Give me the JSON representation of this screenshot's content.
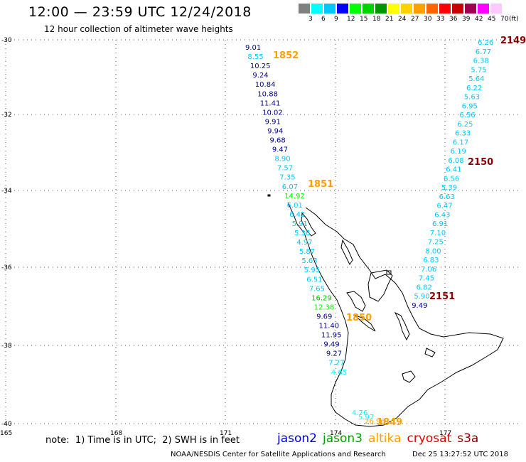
{
  "header": {
    "title": "12:00 — 23:59 UTC 12/24/2018",
    "subtitle": "12 hour collection of altimeter wave heights"
  },
  "colorbar": {
    "unit": "(ft)",
    "stops": [
      {
        "label": "3",
        "color": "#808080"
      },
      {
        "label": "6",
        "color": "#00ffff"
      },
      {
        "label": "9",
        "color": "#00c8ff"
      },
      {
        "label": "12",
        "color": "#0000ff"
      },
      {
        "label": "15",
        "color": "#00ff00"
      },
      {
        "label": "18",
        "color": "#00d200"
      },
      {
        "label": "21",
        "color": "#009600"
      },
      {
        "label": "24",
        "color": "#ffff00"
      },
      {
        "label": "27",
        "color": "#ffd200"
      },
      {
        "label": "30",
        "color": "#ffa000"
      },
      {
        "label": "33",
        "color": "#ff6400"
      },
      {
        "label": "36",
        "color": "#ff0000"
      },
      {
        "label": "39",
        "color": "#c80000"
      },
      {
        "label": "42",
        "color": "#a00050"
      },
      {
        "label": "45",
        "color": "#ff00ff"
      },
      {
        "label": "70",
        "color": "#ffc8ff"
      }
    ]
  },
  "axes": {
    "lat_labels": [
      "-30",
      "-32",
      "-34",
      "-36",
      "-38",
      "-40"
    ],
    "lon_labels": [
      "165",
      "168",
      "171",
      "174",
      "177"
    ]
  },
  "tracks": {
    "left": [
      {
        "v": "9.01",
        "c": "#00008b"
      },
      {
        "v": "8.55",
        "c": "#00c8ff"
      },
      {
        "v": "10.25",
        "c": "#00008b"
      },
      {
        "v": "9.24",
        "c": "#00008b"
      },
      {
        "v": "10.84",
        "c": "#00008b"
      },
      {
        "v": "10.88",
        "c": "#00008b"
      },
      {
        "v": "11.41",
        "c": "#00008b"
      },
      {
        "v": "10.02",
        "c": "#00008b"
      },
      {
        "v": "9.91",
        "c": "#00008b"
      },
      {
        "v": "9.94",
        "c": "#00008b"
      },
      {
        "v": "9.68",
        "c": "#00008b"
      },
      {
        "v": "9.47",
        "c": "#00008b"
      },
      {
        "v": "8.90",
        "c": "#00c8ff"
      },
      {
        "v": "7.57",
        "c": "#00c8ff"
      },
      {
        "v": "7.35",
        "c": "#00c8ff"
      },
      {
        "v": "6.07",
        "c": "#00c8ff"
      },
      {
        "v": "14.92",
        "c": "#00ff00"
      },
      {
        "v": "6.01",
        "c": "#00c8ff"
      },
      {
        "v": "6.42",
        "c": "#00c8ff"
      },
      {
        "v": "5.91",
        "c": "#00c8ff"
      },
      {
        "v": "5.38",
        "c": "#00c8ff"
      },
      {
        "v": "4.97",
        "c": "#00c8ff"
      },
      {
        "v": "5.87",
        "c": "#00c8ff"
      },
      {
        "v": "5.63",
        "c": "#00c8ff"
      },
      {
        "v": "5.95",
        "c": "#00c8ff"
      },
      {
        "v": "6.51",
        "c": "#00c8ff"
      },
      {
        "v": "7.65",
        "c": "#00c8ff"
      },
      {
        "v": "16.29",
        "c": "#00c000"
      },
      {
        "v": "12.38",
        "c": "#00ff00"
      },
      {
        "v": "9.69",
        "c": "#00008b"
      },
      {
        "v": "11.40",
        "c": "#00008b"
      },
      {
        "v": "11.95",
        "c": "#00008b"
      },
      {
        "v": "9.49",
        "c": "#00008b"
      },
      {
        "v": "9.27",
        "c": "#00008b"
      },
      {
        "v": "7.27",
        "c": "#00c8ff"
      },
      {
        "v": "4.65",
        "c": "#00ffff"
      }
    ],
    "right": [
      {
        "v": "6.26",
        "c": "#00c8ff"
      },
      {
        "v": "6.77",
        "c": "#00c8ff"
      },
      {
        "v": "6.38",
        "c": "#00c8ff"
      },
      {
        "v": "5.75",
        "c": "#00c8ff"
      },
      {
        "v": "5.64",
        "c": "#00c8ff"
      },
      {
        "v": "6.22",
        "c": "#00c8ff"
      },
      {
        "v": "5.63",
        "c": "#00c8ff"
      },
      {
        "v": "6.95",
        "c": "#00c8ff"
      },
      {
        "v": "6.56",
        "c": "#00c8ff"
      },
      {
        "v": "6.25",
        "c": "#00c8ff"
      },
      {
        "v": "6.33",
        "c": "#00c8ff"
      },
      {
        "v": "6.17",
        "c": "#00c8ff"
      },
      {
        "v": "6.19",
        "c": "#00c8ff"
      },
      {
        "v": "6.08",
        "c": "#00c8ff"
      },
      {
        "v": "6.41",
        "c": "#00c8ff"
      },
      {
        "v": "6.56",
        "c": "#00c8ff"
      },
      {
        "v": "5.39",
        "c": "#00c8ff"
      },
      {
        "v": "6.63",
        "c": "#00c8ff"
      },
      {
        "v": "6.47",
        "c": "#00c8ff"
      },
      {
        "v": "6.43",
        "c": "#00c8ff"
      },
      {
        "v": "6.91",
        "c": "#00c8ff"
      },
      {
        "v": "7.10",
        "c": "#00c8ff"
      },
      {
        "v": "7.25",
        "c": "#00c8ff"
      },
      {
        "v": "8.00",
        "c": "#00c8ff"
      },
      {
        "v": "6.83",
        "c": "#00c8ff"
      },
      {
        "v": "7.06",
        "c": "#00c8ff"
      },
      {
        "v": "7.45",
        "c": "#00c8ff"
      },
      {
        "v": "6.82",
        "c": "#00c8ff"
      },
      {
        "v": "5.90",
        "c": "#00c8ff"
      },
      {
        "v": "9.49",
        "c": "#00008b"
      }
    ],
    "bottom": [
      {
        "v": "4.76",
        "c": "#00ffff"
      },
      {
        "v": "5.97",
        "c": "#00ffff"
      },
      {
        "v": "26.96",
        "c": "#ffa000"
      }
    ]
  },
  "time_labels": [
    {
      "text": "1852",
      "color": "#ffa000"
    },
    {
      "text": "1851",
      "color": "#ffa000"
    },
    {
      "text": "1850",
      "color": "#ffa000"
    },
    {
      "text": "1849",
      "color": "#ffa000"
    },
    {
      "text": "2149",
      "color": "#8b0000"
    },
    {
      "text": "2150",
      "color": "#8b0000"
    },
    {
      "text": "2151",
      "color": "#8b0000"
    }
  ],
  "footer": {
    "note": "note:  1) Time is in UTC;  2) SWH is in feet",
    "legend": [
      {
        "label": "jason2",
        "color": "#0000cc"
      },
      {
        "label": "jason3",
        "color": "#00a000"
      },
      {
        "label": "altika",
        "color": "#ffa000"
      },
      {
        "label": "cryosat",
        "color": "#e00000"
      },
      {
        "label": "s3a",
        "color": "#8b0000"
      }
    ],
    "credit": "NOAA/NESDIS Center for Satellite Applications and Research",
    "timestamp": "Dec 25 13:27:52 UTC 2018"
  }
}
